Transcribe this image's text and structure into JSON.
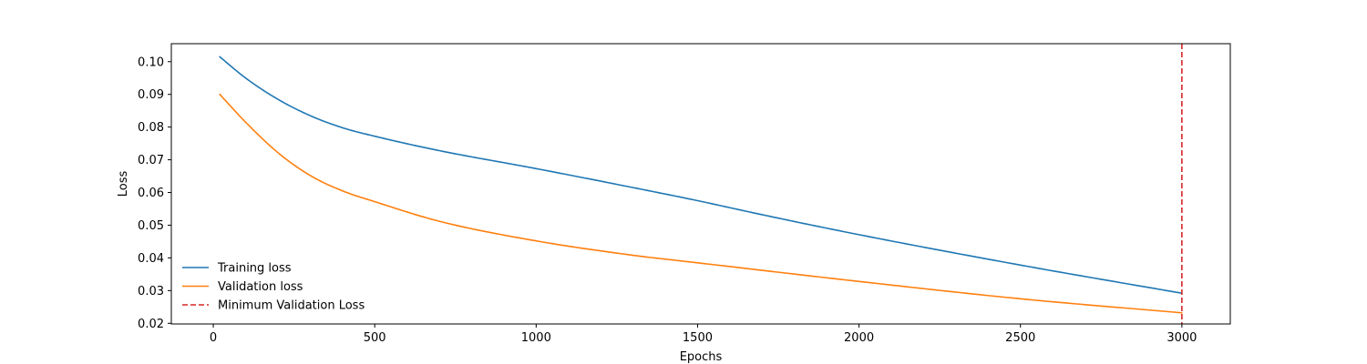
{
  "chart_data": {
    "type": "line",
    "title": "",
    "xlabel": "Epochs",
    "ylabel": "Loss",
    "xlim": [
      -130,
      3150
    ],
    "ylim": [
      0.0198,
      0.1055
    ],
    "xticks": [
      0,
      500,
      1000,
      1500,
      2000,
      2500,
      3000
    ],
    "yticks": [
      0.02,
      0.03,
      0.04,
      0.05,
      0.06,
      0.07,
      0.08,
      0.09,
      0.1
    ],
    "xtick_labels": [
      "0",
      "500",
      "1000",
      "1500",
      "2000",
      "2500",
      "3000"
    ],
    "ytick_labels": [
      "0.02",
      "0.03",
      "0.04",
      "0.05",
      "0.06",
      "0.07",
      "0.08",
      "0.09",
      "0.10"
    ],
    "grid": false,
    "legend_position": "lower-left",
    "series": [
      {
        "name": "Training loss",
        "color": "#1f77b4",
        "x": [
          20,
          100,
          200,
          300,
          400,
          500,
          700,
          1000,
          1300,
          1500,
          1700,
          2000,
          2500,
          3000
        ],
        "y": [
          0.1015,
          0.095,
          0.0885,
          0.0835,
          0.0798,
          0.0772,
          0.0728,
          0.0673,
          0.0615,
          0.0575,
          0.0532,
          0.0471,
          0.0378,
          0.0292
        ]
      },
      {
        "name": "Validation loss",
        "color": "#ff7f0e",
        "x": [
          20,
          100,
          200,
          300,
          400,
          500,
          700,
          1000,
          1300,
          1500,
          2000,
          2500,
          3000
        ],
        "y": [
          0.09,
          0.0815,
          0.0722,
          0.0652,
          0.0605,
          0.0572,
          0.0512,
          0.0452,
          0.0408,
          0.0385,
          0.0328,
          0.0275,
          0.0232
        ]
      }
    ],
    "vline": {
      "name": "Minimum Validation Loss",
      "x": 3000,
      "color": "#d62728",
      "style": "dashed"
    }
  }
}
